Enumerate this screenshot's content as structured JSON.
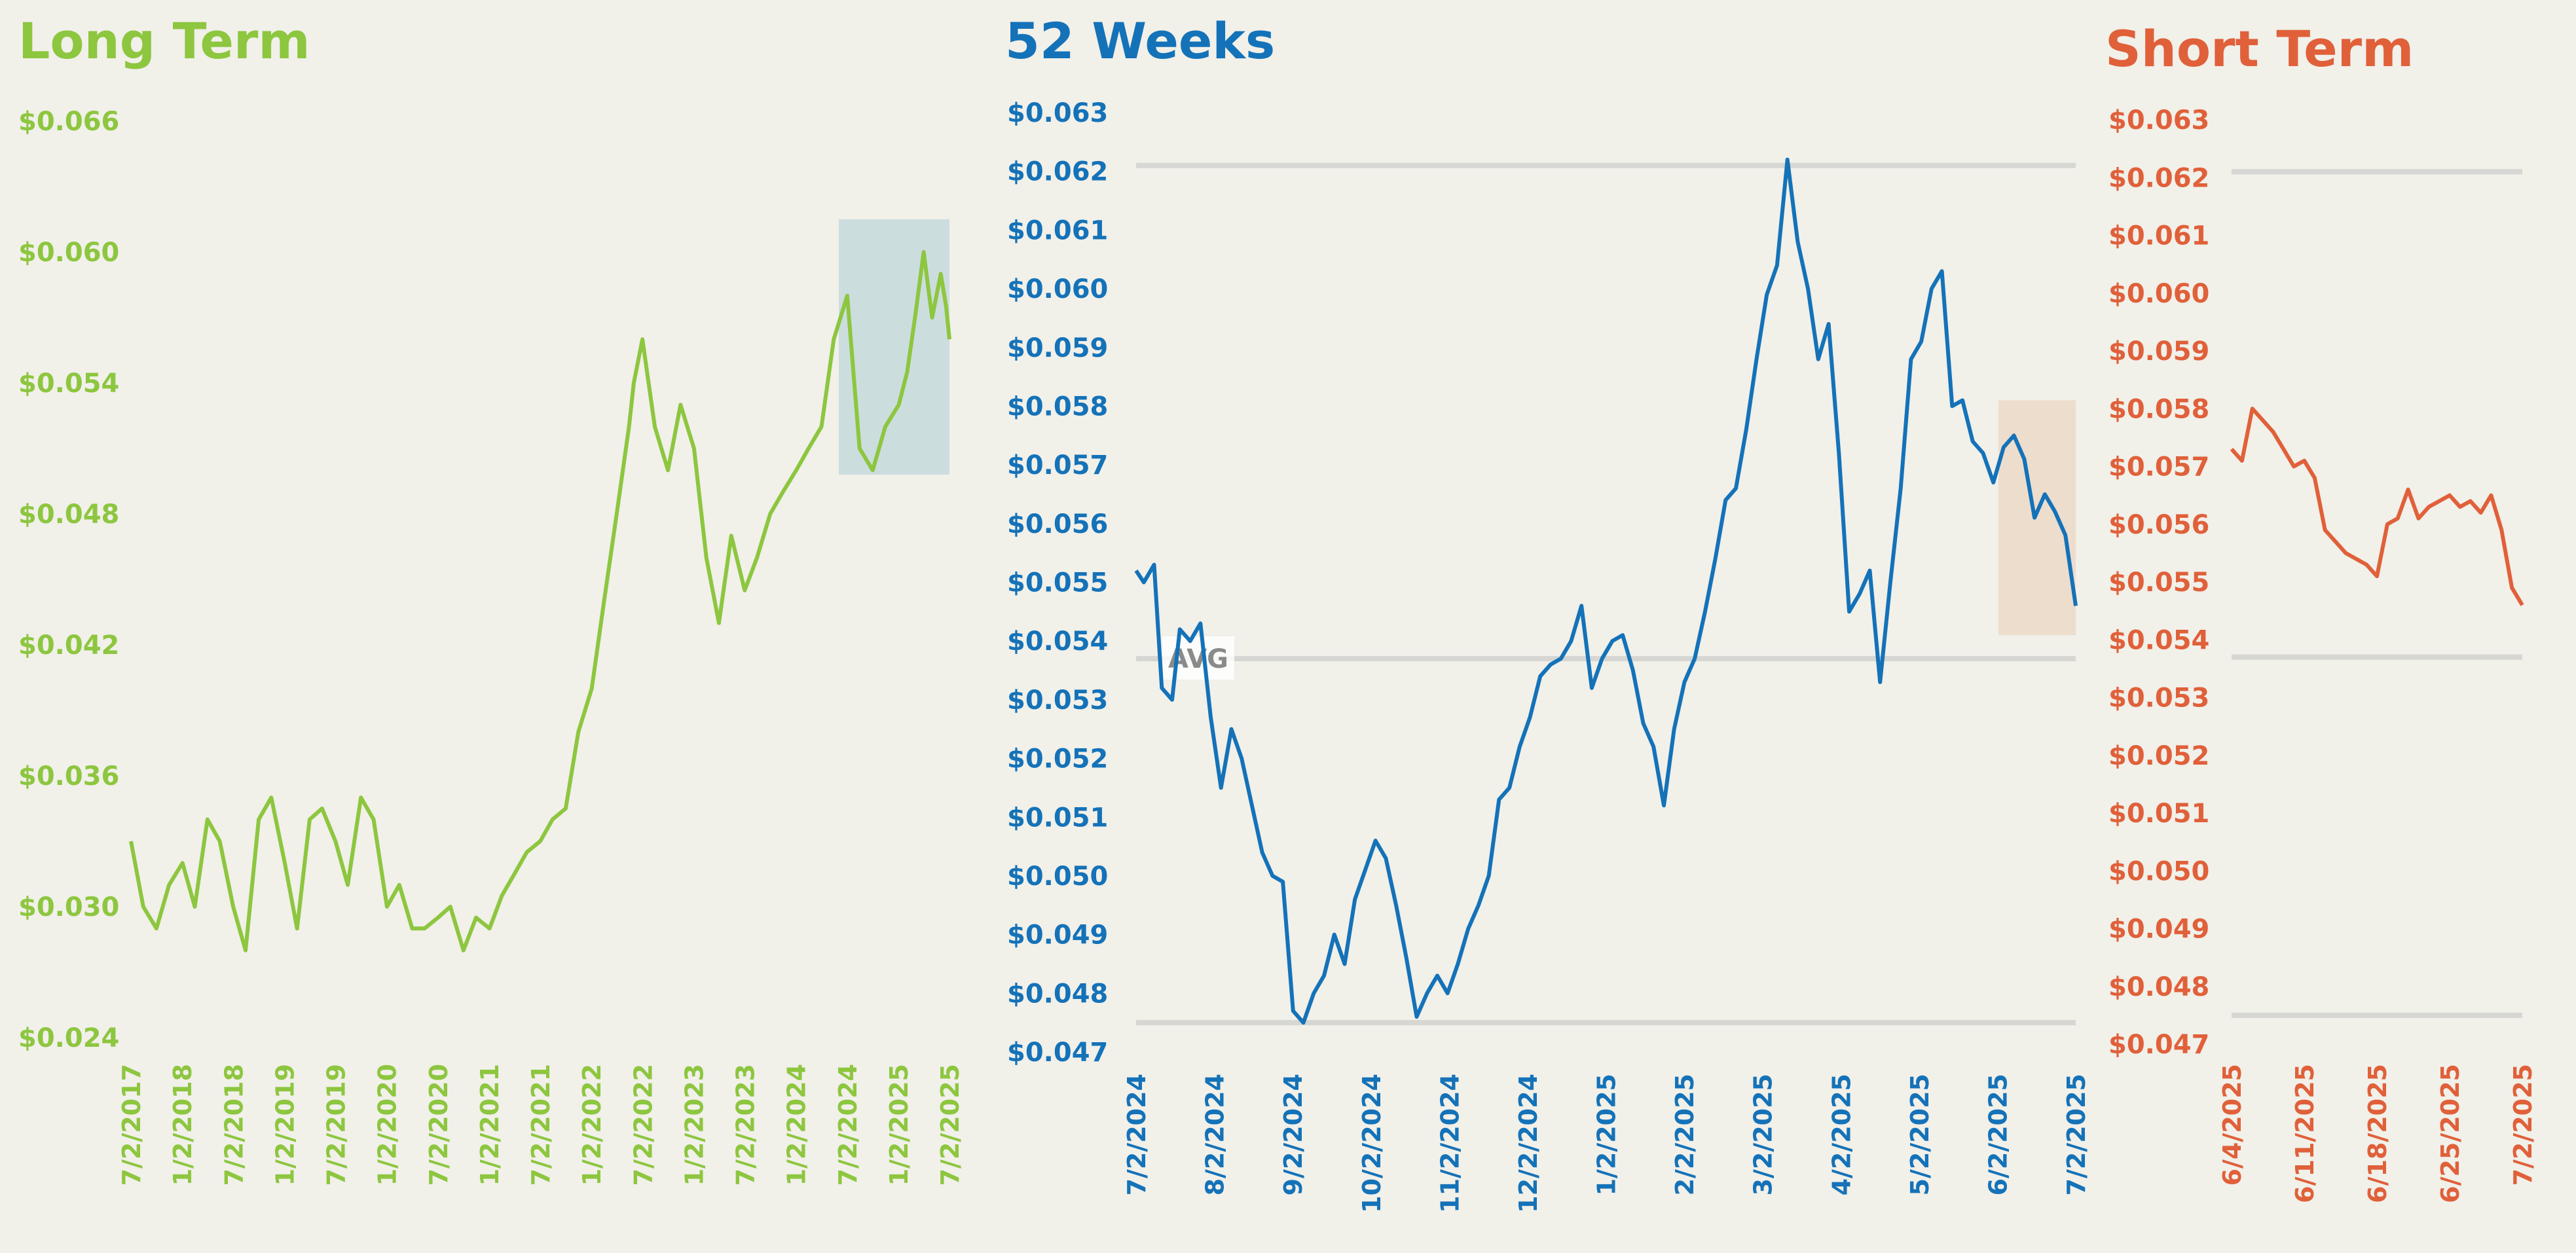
{
  "chart_data": [
    {
      "type": "line",
      "title": "Long Term",
      "color": "#8dc63f",
      "highlight_color": "#c6d9dc",
      "y_ticks": [
        "$0.066",
        "$0.060",
        "$0.054",
        "$0.048",
        "$0.042",
        "$0.036",
        "$0.030",
        "$0.024"
      ],
      "ylim": [
        0.024,
        0.066
      ],
      "x_ticks": [
        "7/2/2017",
        "1/2/2018",
        "7/2/2018",
        "1/2/2019",
        "7/2/2019",
        "1/2/2020",
        "7/2/2020",
        "1/2/2021",
        "7/2/2021",
        "1/2/2022",
        "7/2/2022",
        "1/2/2023",
        "7/2/2023",
        "1/2/2024",
        "7/2/2024",
        "1/2/2025",
        "7/2/2025"
      ],
      "xlim": [
        "2017-07-02",
        "2025-07-02"
      ],
      "highlight": {
        "x": [
          "2024-06-02",
          "2025-07-02"
        ],
        "y": [
          0.0498,
          0.0615
        ]
      },
      "series": [
        {
          "x": [
            "2017-07-02",
            "2017-08-15",
            "2017-10-01",
            "2017-11-15",
            "2018-01-02",
            "2018-02-15",
            "2018-04-01",
            "2018-05-15",
            "2018-07-02",
            "2018-08-15",
            "2018-10-01",
            "2018-11-15",
            "2019-01-02",
            "2019-02-15",
            "2019-04-01",
            "2019-05-15",
            "2019-07-02",
            "2019-08-15",
            "2019-10-01",
            "2019-11-15",
            "2020-01-02",
            "2020-02-15",
            "2020-04-01",
            "2020-05-15",
            "2020-07-02",
            "2020-08-15",
            "2020-10-01",
            "2020-11-15",
            "2021-01-02",
            "2021-02-15",
            "2021-04-01",
            "2021-05-15",
            "2021-07-02",
            "2021-08-15",
            "2021-10-01",
            "2021-11-15",
            "2022-01-02",
            "2022-02-15",
            "2022-04-01",
            "2022-05-15",
            "2022-06-01",
            "2022-07-02",
            "2022-08-15",
            "2022-10-01",
            "2022-11-15",
            "2023-01-02",
            "2023-02-15",
            "2023-04-01",
            "2023-05-15",
            "2023-07-02",
            "2023-08-15",
            "2023-10-01",
            "2023-11-15",
            "2024-01-02",
            "2024-02-15",
            "2024-04-01",
            "2024-05-15",
            "2024-07-02",
            "2024-08-15",
            "2024-10-01",
            "2024-11-15",
            "2025-01-02",
            "2025-02-01",
            "2025-03-01",
            "2025-04-01",
            "2025-05-01",
            "2025-06-01",
            "2025-06-20",
            "2025-07-02"
          ],
          "y": [
            0.033,
            0.03,
            0.029,
            0.031,
            0.032,
            0.03,
            0.034,
            0.033,
            0.03,
            0.028,
            0.034,
            0.035,
            0.032,
            0.029,
            0.034,
            0.0345,
            0.033,
            0.031,
            0.035,
            0.034,
            0.03,
            0.031,
            0.029,
            0.029,
            0.0295,
            0.03,
            0.028,
            0.0295,
            0.029,
            0.0305,
            0.0315,
            0.0325,
            0.033,
            0.034,
            0.0345,
            0.038,
            0.04,
            0.044,
            0.048,
            0.052,
            0.054,
            0.056,
            0.052,
            0.05,
            0.053,
            0.051,
            0.046,
            0.043,
            0.047,
            0.0445,
            0.046,
            0.048,
            0.049,
            0.05,
            0.051,
            0.052,
            0.056,
            0.058,
            0.051,
            0.05,
            0.052,
            0.053,
            0.0545,
            0.057,
            0.06,
            0.057,
            0.059,
            0.0575,
            0.056
          ]
        }
      ]
    },
    {
      "type": "line",
      "title": "52 Weeks",
      "color": "#1472b8",
      "highlight_color": "#ecd9c8",
      "y_ticks": [
        "$0.063",
        "$0.062",
        "$0.061",
        "$0.060",
        "$0.059",
        "$0.058",
        "$0.057",
        "$0.056",
        "$0.055",
        "$0.054",
        "$0.053",
        "$0.052",
        "$0.051",
        "$0.050",
        "$0.049",
        "$0.048",
        "$0.047"
      ],
      "ylim": [
        0.047,
        0.063
      ],
      "x_ticks": [
        "7/2/2024",
        "8/2/2024",
        "9/2/2024",
        "10/2/2024",
        "11/2/2024",
        "12/2/2024",
        "1/2/2025",
        "2/2/2025",
        "3/2/2025",
        "4/2/2025",
        "5/2/2025",
        "6/2/2025",
        "7/2/2025"
      ],
      "xlim": [
        "2024-07-02",
        "2025-07-02"
      ],
      "ref_lines": [
        0.0621,
        0.0537,
        0.0475
      ],
      "avg_label": "AVG",
      "highlight": {
        "x": [
          "2025-06-02",
          "2025-07-02"
        ],
        "y": [
          0.0541,
          0.0581
        ]
      },
      "series": [
        {
          "x": [
            "2024-07-02",
            "2024-07-05",
            "2024-07-09",
            "2024-07-12",
            "2024-07-16",
            "2024-07-19",
            "2024-07-23",
            "2024-07-27",
            "2024-07-31",
            "2024-08-04",
            "2024-08-08",
            "2024-08-12",
            "2024-08-16",
            "2024-08-20",
            "2024-08-24",
            "2024-08-28",
            "2024-09-01",
            "2024-09-05",
            "2024-09-09",
            "2024-09-13",
            "2024-09-17",
            "2024-09-21",
            "2024-09-25",
            "2024-09-29",
            "2024-10-03",
            "2024-10-07",
            "2024-10-11",
            "2024-10-15",
            "2024-10-19",
            "2024-10-23",
            "2024-10-27",
            "2024-10-31",
            "2024-11-04",
            "2024-11-08",
            "2024-11-12",
            "2024-11-16",
            "2024-11-20",
            "2024-11-24",
            "2024-11-28",
            "2024-12-02",
            "2024-12-06",
            "2024-12-10",
            "2024-12-14",
            "2024-12-18",
            "2024-12-22",
            "2024-12-26",
            "2024-12-30",
            "2025-01-03",
            "2025-01-07",
            "2025-01-11",
            "2025-01-15",
            "2025-01-19",
            "2025-01-23",
            "2025-01-27",
            "2025-01-31",
            "2025-02-04",
            "2025-02-08",
            "2025-02-12",
            "2025-02-16",
            "2025-02-20",
            "2025-02-24",
            "2025-02-28",
            "2025-03-04",
            "2025-03-08",
            "2025-03-12",
            "2025-03-16",
            "2025-03-20",
            "2025-03-24",
            "2025-03-28",
            "2025-04-01",
            "2025-04-05",
            "2025-04-09",
            "2025-04-13",
            "2025-04-17",
            "2025-04-21",
            "2025-04-25",
            "2025-04-29",
            "2025-05-03",
            "2025-05-07",
            "2025-05-11",
            "2025-05-15",
            "2025-05-19",
            "2025-05-23",
            "2025-05-27",
            "2025-05-31",
            "2025-06-04",
            "2025-06-08",
            "2025-06-12",
            "2025-06-16",
            "2025-06-20",
            "2025-06-24",
            "2025-06-28",
            "2025-07-02"
          ],
          "y": [
            0.0552,
            0.055,
            0.0553,
            0.0532,
            0.053,
            0.0542,
            0.054,
            0.0543,
            0.0527,
            0.0515,
            0.0525,
            0.052,
            0.0512,
            0.0504,
            0.05,
            0.0499,
            0.0477,
            0.0475,
            0.048,
            0.0483,
            0.049,
            0.0485,
            0.0496,
            0.0501,
            0.0506,
            0.0503,
            0.0495,
            0.0486,
            0.0476,
            0.048,
            0.0483,
            0.048,
            0.0485,
            0.0491,
            0.0495,
            0.05,
            0.0513,
            0.0515,
            0.0522,
            0.0527,
            0.0534,
            0.0536,
            0.0537,
            0.054,
            0.0546,
            0.0532,
            0.0537,
            0.054,
            0.0541,
            0.0535,
            0.0526,
            0.0522,
            0.0512,
            0.0525,
            0.0533,
            0.0537,
            0.0545,
            0.0554,
            0.0564,
            0.0566,
            0.0576,
            0.0588,
            0.0599,
            0.0604,
            0.0622,
            0.0608,
            0.06,
            0.0588,
            0.0594,
            0.0572,
            0.0545,
            0.0548,
            0.0552,
            0.0533,
            0.055,
            0.0566,
            0.0588,
            0.0591,
            0.06,
            0.0603,
            0.058,
            0.0581,
            0.0574,
            0.0572,
            0.0567,
            0.0573,
            0.0575,
            0.0571,
            0.0561,
            0.0565,
            0.0562,
            0.0558,
            0.0546
          ]
        }
      ]
    },
    {
      "type": "line",
      "title": "Short Term",
      "color": "#e0603a",
      "y_ticks": [
        "$0.063",
        "$0.062",
        "$0.061",
        "$0.060",
        "$0.059",
        "$0.058",
        "$0.057",
        "$0.056",
        "$0.055",
        "$0.054",
        "$0.053",
        "$0.052",
        "$0.051",
        "$0.050",
        "$0.049",
        "$0.048",
        "$0.047"
      ],
      "ylim": [
        0.047,
        0.063
      ],
      "x_ticks": [
        "6/4/2025",
        "6/11/2025",
        "6/18/2025",
        "6/25/2025",
        "7/2/2025"
      ],
      "xlim": [
        "2025-06-04",
        "2025-07-02"
      ],
      "ref_lines": [
        0.0621,
        0.0537,
        0.0475
      ],
      "series": [
        {
          "x": [
            "2025-06-04",
            "2025-06-05",
            "2025-06-06",
            "2025-06-07",
            "2025-06-08",
            "2025-06-09",
            "2025-06-10",
            "2025-06-11",
            "2025-06-12",
            "2025-06-13",
            "2025-06-14",
            "2025-06-15",
            "2025-06-16",
            "2025-06-17",
            "2025-06-18",
            "2025-06-19",
            "2025-06-20",
            "2025-06-21",
            "2025-06-22",
            "2025-06-23",
            "2025-06-24",
            "2025-06-25",
            "2025-06-26",
            "2025-06-27",
            "2025-06-28",
            "2025-06-29",
            "2025-06-30",
            "2025-07-01",
            "2025-07-02"
          ],
          "y": [
            0.0573,
            0.0571,
            0.058,
            0.0578,
            0.0576,
            0.0573,
            0.057,
            0.0571,
            0.0568,
            0.0559,
            0.0557,
            0.0555,
            0.0554,
            0.0553,
            0.0551,
            0.056,
            0.0561,
            0.0566,
            0.0561,
            0.0563,
            0.0564,
            0.0565,
            0.0563,
            0.0564,
            0.0562,
            0.0565,
            0.0559,
            0.0549,
            0.0546
          ]
        }
      ]
    }
  ]
}
